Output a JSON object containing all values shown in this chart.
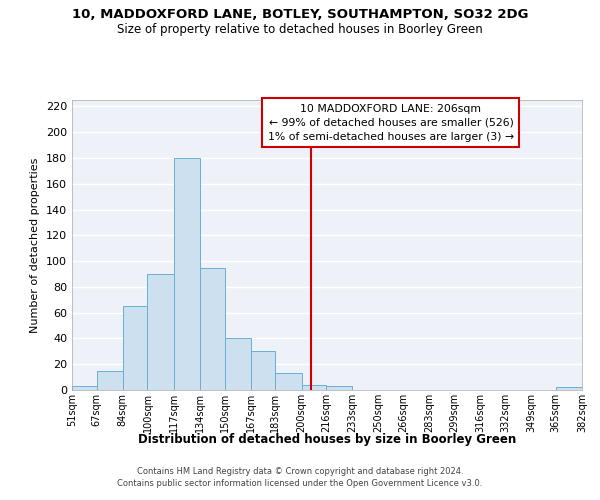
{
  "title1": "10, MADDOXFORD LANE, BOTLEY, SOUTHAMPTON, SO32 2DG",
  "title2": "Size of property relative to detached houses in Boorley Green",
  "xlabel": "Distribution of detached houses by size in Boorley Green",
  "ylabel": "Number of detached properties",
  "bar_edges": [
    51,
    67,
    84,
    100,
    117,
    134,
    150,
    167,
    183,
    200,
    216,
    233,
    250,
    266,
    283,
    299,
    316,
    332,
    349,
    365,
    382
  ],
  "bar_heights": [
    3,
    15,
    65,
    90,
    180,
    95,
    40,
    30,
    13,
    4,
    3,
    0,
    0,
    0,
    0,
    0,
    0,
    0,
    0,
    2
  ],
  "bar_color": "#cce0f0",
  "bar_edge_color": "#6aafd6",
  "vline_x": 206,
  "vline_color": "#cc0000",
  "annotation_line1": "10 MADDOXFORD LANE: 206sqm",
  "annotation_line2": "← 99% of detached houses are smaller (526)",
  "annotation_line3": "1% of semi-detached houses are larger (3) →",
  "ylim": [
    0,
    225
  ],
  "yticks": [
    0,
    20,
    40,
    60,
    80,
    100,
    120,
    140,
    160,
    180,
    200,
    220
  ],
  "tick_labels": [
    "51sqm",
    "67sqm",
    "84sqm",
    "100sqm",
    "117sqm",
    "134sqm",
    "150sqm",
    "167sqm",
    "183sqm",
    "200sqm",
    "216sqm",
    "233sqm",
    "250sqm",
    "266sqm",
    "283sqm",
    "299sqm",
    "316sqm",
    "332sqm",
    "349sqm",
    "365sqm",
    "382sqm"
  ],
  "footer1": "Contains HM Land Registry data © Crown copyright and database right 2024.",
  "footer2": "Contains public sector information licensed under the Open Government Licence v3.0.",
  "bg_color": "#eef2f8",
  "grid_color": "#ffffff"
}
